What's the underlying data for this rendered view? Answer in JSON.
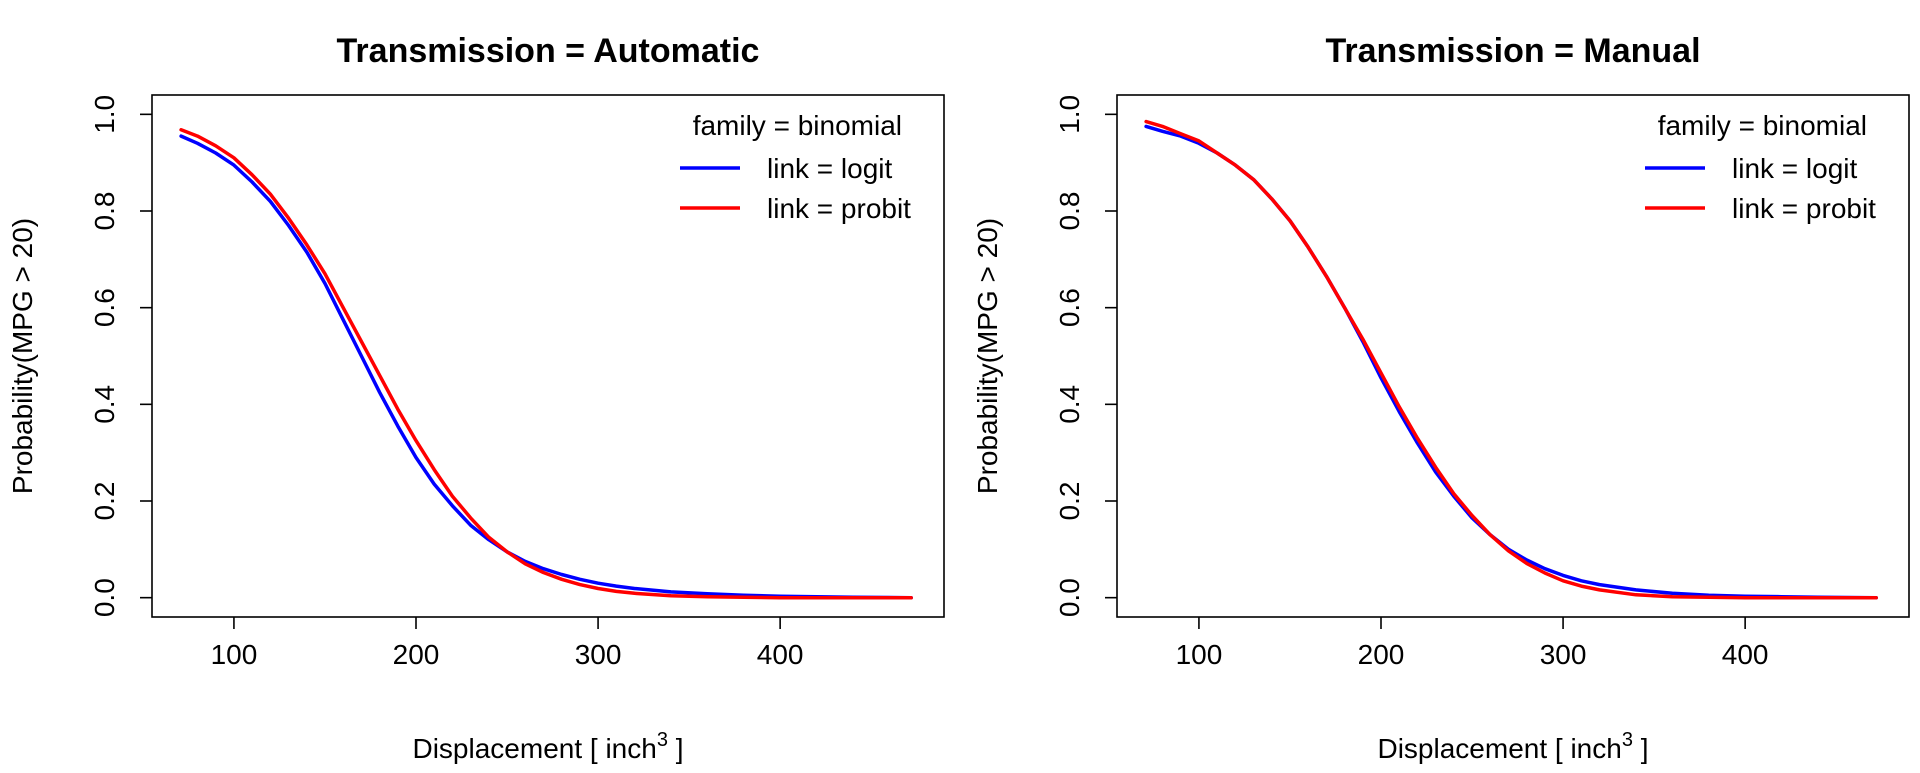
{
  "chart_data": [
    {
      "type": "line",
      "title": "Transmission = Automatic",
      "xlabel": "Displacement [ inch",
      "xlabel_sup": "3",
      "xlabel_end": " ]",
      "ylabel": "Probability(MPG > 20)",
      "xlim": [
        55,
        490
      ],
      "ylim": [
        -0.04,
        1.04
      ],
      "xticks": [
        100,
        200,
        300,
        400
      ],
      "yticks": [
        0.0,
        0.2,
        0.4,
        0.6,
        0.8,
        1.0
      ],
      "xtick_labels": [
        "100",
        "200",
        "300",
        "400"
      ],
      "ytick_labels": [
        "0.0",
        "0.2",
        "0.4",
        "0.6",
        "0.8",
        "1.0"
      ],
      "grid": false,
      "legend": {
        "title": "family = binomial",
        "placement": "top-right"
      },
      "x": [
        71,
        80,
        90,
        100,
        110,
        120,
        130,
        140,
        150,
        160,
        170,
        180,
        190,
        200,
        210,
        220,
        230,
        240,
        250,
        260,
        270,
        280,
        290,
        300,
        310,
        320,
        340,
        360,
        380,
        400,
        420,
        440,
        472
      ],
      "series": [
        {
          "name": "link = logit",
          "color": "#0000ff",
          "values": [
            0.955,
            0.94,
            0.92,
            0.895,
            0.86,
            0.82,
            0.77,
            0.715,
            0.65,
            0.575,
            0.5,
            0.425,
            0.355,
            0.29,
            0.235,
            0.19,
            0.15,
            0.12,
            0.095,
            0.075,
            0.06,
            0.048,
            0.038,
            0.03,
            0.024,
            0.019,
            0.012,
            0.008,
            0.005,
            0.003,
            0.002,
            0.001,
            0.0
          ]
        },
        {
          "name": "link = probit",
          "color": "#ff0000",
          "values": [
            0.968,
            0.955,
            0.935,
            0.91,
            0.875,
            0.835,
            0.785,
            0.73,
            0.67,
            0.6,
            0.53,
            0.46,
            0.39,
            0.325,
            0.265,
            0.21,
            0.165,
            0.125,
            0.095,
            0.07,
            0.052,
            0.038,
            0.027,
            0.019,
            0.013,
            0.009,
            0.004,
            0.002,
            0.001,
            0.0,
            0.0,
            0.0,
            0.0
          ]
        }
      ]
    },
    {
      "type": "line",
      "title": "Transmission = Manual",
      "xlabel": "Displacement [ inch",
      "xlabel_sup": "3",
      "xlabel_end": " ]",
      "ylabel": "Probability(MPG > 20)",
      "xlim": [
        55,
        490
      ],
      "ylim": [
        -0.04,
        1.04
      ],
      "xticks": [
        100,
        200,
        300,
        400
      ],
      "yticks": [
        0.0,
        0.2,
        0.4,
        0.6,
        0.8,
        1.0
      ],
      "xtick_labels": [
        "100",
        "200",
        "300",
        "400"
      ],
      "ytick_labels": [
        "0.0",
        "0.2",
        "0.4",
        "0.6",
        "0.8",
        "1.0"
      ],
      "grid": false,
      "legend": {
        "title": "family = binomial",
        "placement": "top-right"
      },
      "x": [
        71,
        80,
        90,
        100,
        110,
        120,
        130,
        140,
        150,
        160,
        170,
        180,
        190,
        200,
        210,
        220,
        230,
        240,
        250,
        260,
        270,
        280,
        290,
        300,
        310,
        320,
        340,
        360,
        380,
        400,
        420,
        440,
        472
      ],
      "series": [
        {
          "name": "link = logit",
          "color": "#0000ff",
          "values": [
            0.975,
            0.965,
            0.955,
            0.94,
            0.92,
            0.895,
            0.865,
            0.825,
            0.78,
            0.725,
            0.665,
            0.6,
            0.53,
            0.455,
            0.385,
            0.32,
            0.26,
            0.21,
            0.165,
            0.13,
            0.1,
            0.078,
            0.06,
            0.046,
            0.035,
            0.027,
            0.016,
            0.009,
            0.005,
            0.003,
            0.002,
            0.001,
            0.0
          ]
        },
        {
          "name": "link = probit",
          "color": "#ff0000",
          "values": [
            0.985,
            0.975,
            0.96,
            0.945,
            0.92,
            0.895,
            0.865,
            0.825,
            0.78,
            0.725,
            0.665,
            0.6,
            0.535,
            0.465,
            0.395,
            0.33,
            0.27,
            0.215,
            0.17,
            0.13,
            0.097,
            0.071,
            0.051,
            0.035,
            0.024,
            0.016,
            0.006,
            0.002,
            0.001,
            0.0,
            0.0,
            0.0,
            0.0
          ]
        }
      ]
    }
  ]
}
